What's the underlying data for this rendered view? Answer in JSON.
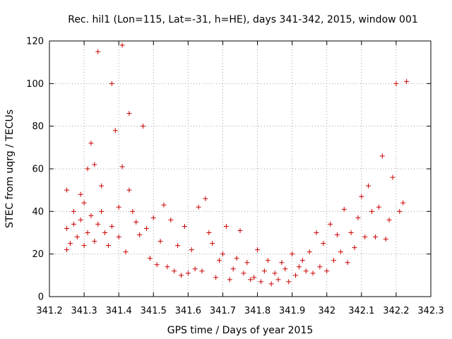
{
  "chart_data": {
    "type": "scatter",
    "title": "Rec. hil1 (Lon=115, Lat=-31, h=HE), days 341-342, 2015, window 001",
    "xlabel": "GPS time / Days of year 2015",
    "ylabel": "STEC from uqrg / TECUs",
    "xlim": [
      341.2,
      342.3
    ],
    "ylim": [
      0,
      120
    ],
    "x_ticks": [
      341.2,
      341.3,
      341.4,
      341.5,
      341.6,
      341.7,
      341.8,
      341.9,
      342.0,
      342.1,
      342.2,
      342.3
    ],
    "x_tick_labels": [
      "341.2",
      "341.3",
      "341.4",
      "341.5",
      "341.6",
      "341.7",
      "341.8",
      "341.9",
      "342",
      "342.1",
      "342.2",
      "342.3"
    ],
    "y_ticks": [
      0,
      20,
      40,
      60,
      80,
      100,
      120
    ],
    "y_tick_labels": [
      "0",
      "20",
      "40",
      "60",
      "80",
      "100",
      "120"
    ],
    "grid": true,
    "marker": "+",
    "color": "#cc0000",
    "series": [
      {
        "x": [
          341.25,
          341.25,
          341.25,
          341.26,
          341.27,
          341.27,
          341.28,
          341.29,
          341.29,
          341.3,
          341.3,
          341.31,
          341.31,
          341.32,
          341.32,
          341.33,
          341.33,
          341.34,
          341.34,
          341.35,
          341.35,
          341.36,
          341.37,
          341.38,
          341.38,
          341.39,
          341.4,
          341.4,
          341.41,
          341.41,
          341.42,
          341.43,
          341.43,
          341.44,
          341.45,
          341.46,
          341.47,
          341.48,
          341.49,
          341.5,
          341.51,
          341.52,
          341.53,
          341.54,
          341.55,
          341.56,
          341.57,
          341.58,
          341.59,
          341.6,
          341.61,
          341.62,
          341.63,
          341.64,
          341.65,
          341.66,
          341.67,
          341.68,
          341.69,
          341.7,
          341.71,
          341.72,
          341.73,
          341.74,
          341.75,
          341.76,
          341.77,
          341.78,
          341.79,
          341.8,
          341.81,
          341.82,
          341.83,
          341.84,
          341.85,
          341.86,
          341.87,
          341.88,
          341.89,
          341.9,
          341.91,
          341.92,
          341.93,
          341.94,
          341.95,
          341.96,
          341.97,
          341.98,
          341.99,
          342.0,
          342.01,
          342.02,
          342.03,
          342.04,
          342.05,
          342.06,
          342.07,
          342.08,
          342.09,
          342.1,
          342.11,
          342.12,
          342.13,
          342.14,
          342.15,
          342.16,
          342.17,
          342.18,
          342.19,
          342.2,
          342.21,
          342.22,
          342.23
        ],
        "y": [
          22,
          32,
          50,
          25,
          34,
          40,
          28,
          36,
          48,
          24,
          44,
          30,
          60,
          38,
          72,
          26,
          62,
          34,
          115,
          40,
          52,
          30,
          24,
          100,
          33,
          78,
          28,
          42,
          61,
          118,
          21,
          86,
          50,
          40,
          35,
          29,
          80,
          32,
          18,
          37,
          15,
          26,
          43,
          14,
          36,
          12,
          24,
          10,
          33,
          11,
          22,
          13,
          42,
          12,
          46,
          30,
          25,
          9,
          17,
          20,
          33,
          8,
          13,
          18,
          31,
          11,
          16,
          8,
          9,
          22,
          7,
          12,
          17,
          6,
          11,
          8,
          16,
          13,
          7,
          20,
          10,
          14,
          17,
          12,
          21,
          11,
          30,
          14,
          25,
          12,
          34,
          17,
          29,
          21,
          41,
          16,
          30,
          23,
          37,
          47,
          28,
          52,
          40,
          28,
          42,
          66,
          27,
          36,
          56,
          100,
          40,
          44,
          101
        ]
      }
    ]
  }
}
